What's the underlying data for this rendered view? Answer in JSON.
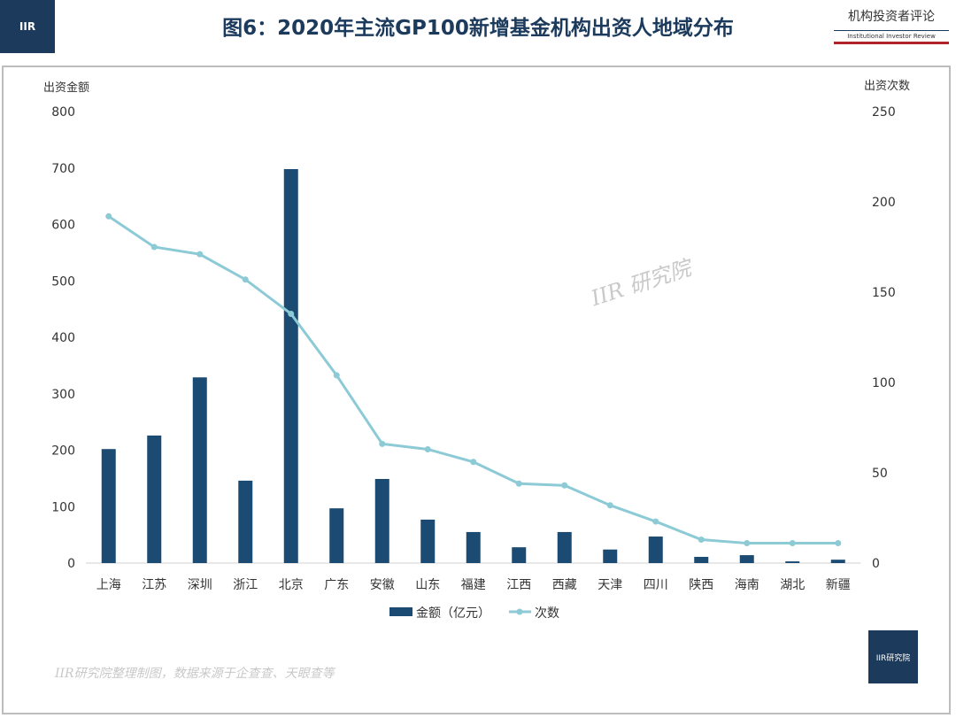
{
  "header": {
    "title": "图6：2020年主流GP100新增基金机构出资人地域分布",
    "brand_cn": "机构投资者评论",
    "brand_en": "Institutional Investor Review",
    "logo_text": "IIR研究院"
  },
  "watermark": "IIR 研究院",
  "source": "IIR研究院整理制图，数据来源于企查查、天眼查等",
  "chart_data": {
    "type": "bar+line",
    "title": "图6：2020年主流GP100新增基金机构出资人地域分布",
    "categories": [
      "上海",
      "江苏",
      "深圳",
      "浙江",
      "北京",
      "广东",
      "安徽",
      "山东",
      "福建",
      "江西",
      "西藏",
      "天津",
      "四川",
      "陕西",
      "海南",
      "湖北",
      "新疆"
    ],
    "series": [
      {
        "name": "金额（亿元）",
        "type": "bar",
        "axis": "left",
        "color": "#1b4a72",
        "values": [
          202,
          226,
          329,
          146,
          698,
          97,
          149,
          77,
          55,
          28,
          55,
          24,
          47,
          11,
          14,
          3,
          6
        ]
      },
      {
        "name": "次数",
        "type": "line",
        "axis": "right",
        "color": "#8ccad6",
        "values": [
          192,
          175,
          171,
          157,
          138,
          104,
          66,
          63,
          56,
          44,
          43,
          32,
          23,
          13,
          11,
          11,
          11
        ]
      }
    ],
    "ylabel": "出资金额",
    "y2label": "出资次数",
    "ylim": [
      0,
      800
    ],
    "yticks": [
      0,
      100,
      200,
      300,
      400,
      500,
      600,
      700,
      800
    ],
    "y2lim": [
      0,
      250
    ],
    "y2ticks": [
      0,
      50,
      100,
      150,
      200,
      250
    ],
    "legend": "bottom",
    "grid": false
  }
}
